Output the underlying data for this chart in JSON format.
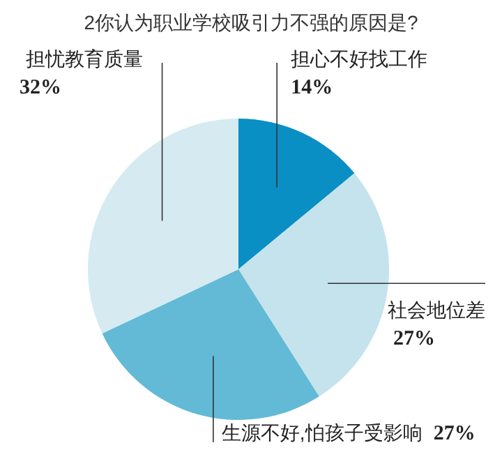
{
  "chart_data": {
    "type": "pie",
    "title": "2你认为职业学校吸引力不强的原因是?",
    "categories": [
      "担心不好找工作",
      "社会地位差",
      "生源不好,怕孩子受影响",
      "担忧教育质量"
    ],
    "values": [
      14,
      27,
      27,
      32
    ],
    "value_labels": [
      "14%",
      "27%",
      "27%",
      "32%"
    ],
    "colors": [
      "#0a8fc4",
      "#c5e3ec",
      "#62bad6",
      "#d5eaf1"
    ]
  }
}
